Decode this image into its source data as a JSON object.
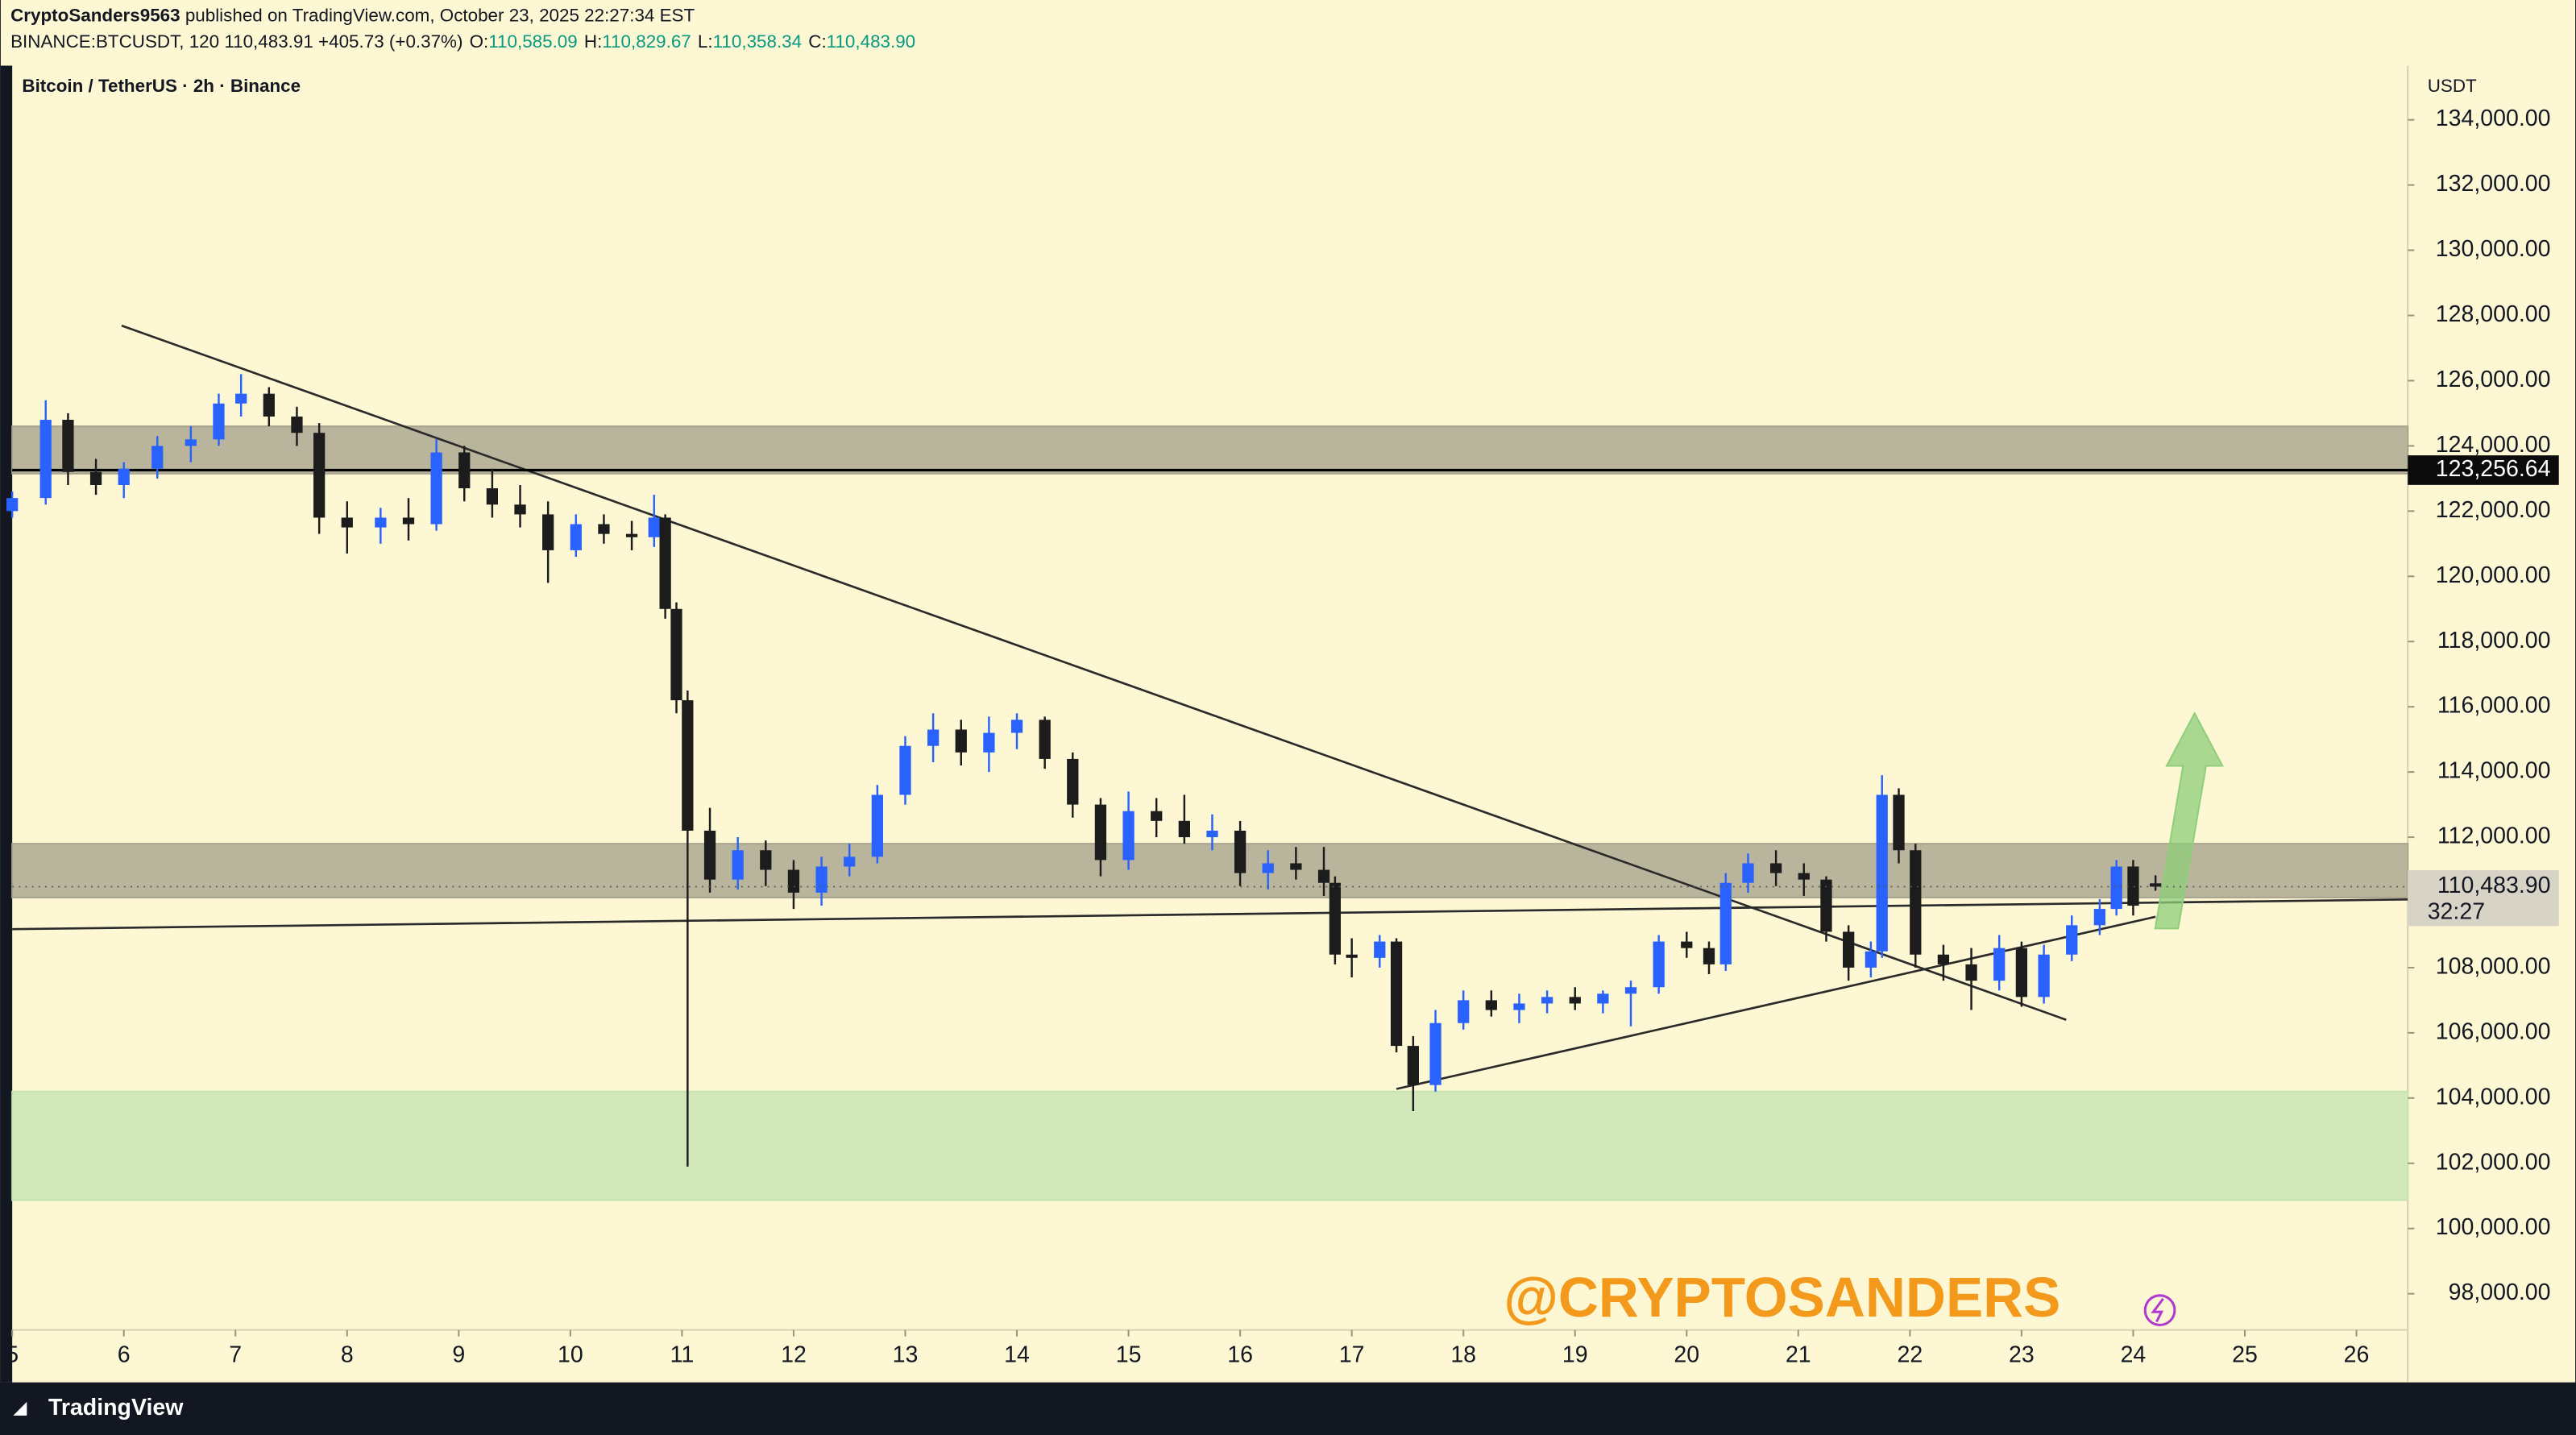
{
  "chart_data": {
    "type": "candlestick",
    "header": {
      "author": "CryptoSanders9563",
      "published": "published on TradingView.com, October 23, 2025 22:27:34 EST",
      "symbol": "BINANCE:BTCUSDT, 120",
      "last": "110,483.91",
      "change": "+405.73 (+0.37%)",
      "ohlc": [
        {
          "key": "O:",
          "text": "110,585.09"
        },
        {
          "key": "H:",
          "text": "110,829.67"
        },
        {
          "key": "L:",
          "text": "110,358.34"
        },
        {
          "key": "C:",
          "text": "110,483.90"
        }
      ]
    },
    "title": "Bitcoin / TetherUS · 2h · Binance",
    "currency": "USDT",
    "watermark": "@CRYPTOSANDERS",
    "brand": "TradingView",
    "up_color": "#2962ff",
    "down_color": "#1c1c1c",
    "background": "#fdf7d4",
    "xlim": [
      5,
      26.46
    ],
    "ylim": [
      96890,
      135660
    ],
    "xticks": [
      5,
      6,
      7,
      8,
      9,
      10,
      11,
      12,
      13,
      14,
      15,
      16,
      17,
      18,
      19,
      20,
      21,
      22,
      23,
      24,
      25,
      26
    ],
    "yticks": [
      {
        "value": 98000,
        "label": "98,000.00"
      },
      {
        "value": 100000,
        "label": "100,000.00"
      },
      {
        "value": 102000,
        "label": "102,000.00"
      },
      {
        "value": 104000,
        "label": "104,000.00"
      },
      {
        "value": 106000,
        "label": "106,000.00"
      },
      {
        "value": 108000,
        "label": "108,000.00"
      },
      {
        "value": 110000,
        "label": "110,000.00"
      },
      {
        "value": 112000,
        "label": "112,000.00"
      },
      {
        "value": 114000,
        "label": "114,000.00"
      },
      {
        "value": 116000,
        "label": "116,000.00"
      },
      {
        "value": 118000,
        "label": "118,000.00"
      },
      {
        "value": 120000,
        "label": "120,000.00"
      },
      {
        "value": 122000,
        "label": "122,000.00"
      },
      {
        "value": 124000,
        "label": "124,000.00"
      },
      {
        "value": 126000,
        "label": "126,000.00"
      },
      {
        "value": 128000,
        "label": "128,000.00"
      },
      {
        "value": 130000,
        "label": "130,000.00"
      },
      {
        "value": 132000,
        "label": "132,000.00"
      },
      {
        "value": 134000,
        "label": "134,000.00"
      }
    ],
    "x": [
      5.0,
      5.3,
      5.5,
      5.75,
      6.0,
      6.3,
      6.6,
      6.85,
      7.05,
      7.3,
      7.55,
      7.75,
      8.0,
      8.3,
      8.55,
      8.8,
      9.05,
      9.3,
      9.55,
      9.8,
      10.05,
      10.3,
      10.55,
      10.75,
      10.85,
      10.95,
      11.05,
      11.25,
      11.5,
      11.75,
      12.0,
      12.25,
      12.5,
      12.75,
      13.0,
      13.25,
      13.5,
      13.75,
      14.0,
      14.25,
      14.5,
      14.75,
      15.0,
      15.25,
      15.5,
      15.75,
      16.0,
      16.25,
      16.5,
      16.75,
      16.85,
      17.0,
      17.25,
      17.4,
      17.55,
      17.75,
      18.0,
      18.25,
      18.5,
      18.75,
      19.0,
      19.25,
      19.5,
      19.75,
      20.0,
      20.2,
      20.35,
      20.55,
      20.8,
      21.05,
      21.25,
      21.45,
      21.65,
      21.75,
      21.9,
      22.05,
      22.3,
      22.55,
      22.8,
      23.0,
      23.2,
      23.45,
      23.7,
      23.85,
      24.0,
      24.2
    ],
    "open": [
      122000,
      122400,
      124800,
      123200,
      122800,
      123300,
      124000,
      124200,
      125300,
      125600,
      124900,
      124400,
      121800,
      121500,
      121800,
      121600,
      123800,
      122700,
      122200,
      121900,
      120800,
      121600,
      121300,
      121200,
      121800,
      119000,
      116200,
      112200,
      110700,
      111600,
      111000,
      110300,
      111100,
      111400,
      113300,
      114800,
      115300,
      114600,
      115200,
      115600,
      114400,
      113000,
      111300,
      112800,
      112500,
      112000,
      112200,
      110900,
      111200,
      111000,
      110600,
      108400,
      108300,
      108800,
      105600,
      104400,
      106300,
      107000,
      106700,
      106900,
      107100,
      106900,
      107200,
      107400,
      108800,
      108600,
      108100,
      110600,
      111200,
      110900,
      110700,
      109100,
      108000,
      108500,
      113300,
      111600,
      108400,
      108100,
      107600,
      108600,
      107100,
      108400,
      109300,
      109800,
      111100,
      110585.09
    ],
    "high": [
      122600,
      125400,
      125000,
      123600,
      123500,
      124300,
      124600,
      125600,
      126200,
      125800,
      125200,
      124700,
      122300,
      122100,
      122400,
      124200,
      124000,
      123300,
      122800,
      122300,
      121900,
      121900,
      121700,
      122500,
      121900,
      119200,
      116500,
      112900,
      112000,
      111900,
      111300,
      111400,
      111800,
      113600,
      115100,
      115800,
      115600,
      115700,
      115800,
      115700,
      114600,
      113200,
      113400,
      113200,
      113300,
      112700,
      112500,
      111600,
      111700,
      111700,
      110800,
      108900,
      109000,
      108900,
      105900,
      106700,
      107300,
      107300,
      107200,
      107300,
      107400,
      107300,
      107600,
      109000,
      109100,
      108800,
      110900,
      111500,
      111600,
      111200,
      110800,
      109300,
      108800,
      113900,
      113500,
      111800,
      108700,
      108600,
      109000,
      108800,
      108700,
      109600,
      110100,
      111300,
      111300,
      110829.67
    ],
    "low": [
      121800,
      122200,
      122800,
      122500,
      122400,
      123000,
      123500,
      124000,
      124900,
      124600,
      124000,
      121300,
      120700,
      121000,
      121100,
      121400,
      122300,
      121800,
      121500,
      119800,
      120600,
      121000,
      120800,
      120900,
      118700,
      115800,
      101900,
      110300,
      110400,
      110500,
      109800,
      109900,
      110800,
      111200,
      113000,
      114300,
      114200,
      114000,
      114700,
      114100,
      112600,
      110800,
      111000,
      112000,
      111800,
      111600,
      110500,
      110400,
      110700,
      110200,
      108100,
      107700,
      108000,
      105400,
      103600,
      104200,
      106100,
      106500,
      106300,
      106600,
      106700,
      106600,
      106200,
      107200,
      108300,
      107800,
      107900,
      110300,
      110500,
      110200,
      108800,
      107600,
      107700,
      108300,
      111200,
      108000,
      107600,
      106700,
      107300,
      106800,
      106900,
      108200,
      109000,
      109600,
      109600,
      110358.34
    ],
    "close": [
      122400,
      124800,
      123200,
      122800,
      123300,
      124000,
      124200,
      125300,
      125600,
      124900,
      124400,
      121800,
      121500,
      121800,
      121600,
      123800,
      122700,
      122200,
      121900,
      120800,
      121600,
      121300,
      121200,
      121800,
      119000,
      116200,
      112200,
      110700,
      111600,
      111000,
      110300,
      111100,
      111400,
      113300,
      114800,
      115300,
      114600,
      115200,
      115600,
      114400,
      113000,
      111300,
      112800,
      112500,
      112000,
      112200,
      110900,
      111200,
      111000,
      110600,
      108400,
      108300,
      108800,
      105600,
      104400,
      106300,
      107000,
      106700,
      106900,
      107100,
      106900,
      107200,
      107400,
      108800,
      108600,
      108100,
      110600,
      111200,
      110900,
      110700,
      109100,
      108000,
      108500,
      113300,
      111600,
      108400,
      108100,
      107600,
      108600,
      107100,
      108400,
      109300,
      109800,
      111100,
      109900,
      110483.9
    ],
    "zones": [
      {
        "from": 123150,
        "to": 124600,
        "color": "#a8a48e"
      },
      {
        "from": 110150,
        "to": 111800,
        "color": "#a8a48e"
      },
      {
        "from": 100870,
        "to": 104200,
        "color": "#c6e3b2"
      }
    ],
    "lines": [
      {
        "x": [
          5.98,
          23.4
        ],
        "y": [
          127690,
          106400
        ]
      },
      {
        "x": [
          5,
          26.46
        ],
        "y": [
          109180,
          110090
        ]
      },
      {
        "x": [
          17.4,
          24.2
        ],
        "y": [
          104280,
          109560
        ]
      }
    ],
    "arrow": {
      "x": [
        24.3,
        24.55
      ],
      "y": [
        109200,
        115800
      ],
      "color": "#8fce7a"
    },
    "price_levels": [
      {
        "value": 123256.64,
        "label": "123,256.64"
      }
    ],
    "last_price": {
      "value": 110483.9,
      "label": "110,483.90",
      "countdown": "32:27"
    }
  }
}
